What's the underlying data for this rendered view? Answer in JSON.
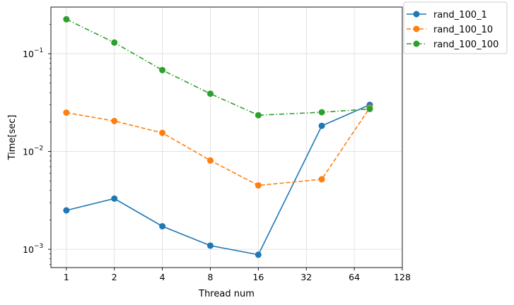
{
  "chart_data": {
    "type": "line",
    "xlabel": "Thread num",
    "ylabel": "Time[sec]",
    "x_scale": "log2",
    "y_scale": "log10",
    "xlim": [
      0.8,
      128
    ],
    "ylim": [
      0.00065,
      0.3
    ],
    "grid": true,
    "legend_placement": "outside-top-right",
    "x_ticks": [
      {
        "value": 1,
        "label": "1"
      },
      {
        "value": 2,
        "label": "2"
      },
      {
        "value": 4,
        "label": "4"
      },
      {
        "value": 8,
        "label": "8"
      },
      {
        "value": 16,
        "label": "16"
      },
      {
        "value": 32,
        "label": "32"
      },
      {
        "value": 64,
        "label": "64"
      },
      {
        "value": 128,
        "label": "128"
      }
    ],
    "y_ticks": [
      {
        "value": 0.001,
        "base": "10",
        "exp": "−3"
      },
      {
        "value": 0.01,
        "base": "10",
        "exp": "−2"
      },
      {
        "value": 0.1,
        "base": "10",
        "exp": "−1"
      }
    ],
    "x": [
      1,
      2,
      4,
      8,
      16,
      40,
      80
    ],
    "series": [
      {
        "name": "rand_100_1",
        "color": "#1f77b4",
        "dash": "solid",
        "values": [
          0.0025,
          0.0033,
          0.00172,
          0.00109,
          0.00088,
          0.0183,
          0.03
        ]
      },
      {
        "name": "rand_100_10",
        "color": "#ff7f0e",
        "dash": "dashed",
        "values": [
          0.025,
          0.0205,
          0.0155,
          0.0081,
          0.0045,
          0.0052,
          0.028
        ]
      },
      {
        "name": "rand_100_100",
        "color": "#2ca02c",
        "dash": "dashdot",
        "values": [
          0.225,
          0.13,
          0.068,
          0.039,
          0.0235,
          0.0252,
          0.0272
        ]
      }
    ]
  }
}
